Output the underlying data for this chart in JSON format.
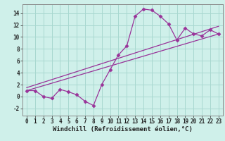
{
  "xlabel": "Windchill (Refroidissement éolien,°C)",
  "ylabel": "",
  "background_color": "#cff0ea",
  "grid_color": "#a8d8d0",
  "line_color": "#993399",
  "spine_color": "#888888",
  "xlim": [
    -0.5,
    23.5
  ],
  "ylim": [
    -3.2,
    15.5
  ],
  "xticks": [
    0,
    1,
    2,
    3,
    4,
    5,
    6,
    7,
    8,
    9,
    10,
    11,
    12,
    13,
    14,
    15,
    16,
    17,
    18,
    19,
    20,
    21,
    22,
    23
  ],
  "yticks": [
    -2,
    0,
    2,
    4,
    6,
    8,
    10,
    12,
    14
  ],
  "curve1_x": [
    0,
    1,
    2,
    3,
    4,
    5,
    6,
    7,
    8,
    9,
    10,
    11,
    12,
    13,
    14,
    15,
    16,
    17,
    18,
    19,
    20,
    21,
    22,
    23
  ],
  "curve1_y": [
    1.0,
    1.0,
    0.0,
    -0.3,
    1.2,
    0.8,
    0.3,
    -0.8,
    -1.5,
    2.0,
    4.5,
    7.0,
    8.5,
    13.5,
    14.7,
    14.5,
    13.5,
    12.2,
    9.5,
    11.5,
    10.5,
    10.2,
    11.2,
    10.5
  ],
  "line2_x": [
    0,
    23
  ],
  "line2_y": [
    1.0,
    10.5
  ],
  "line3_x": [
    0,
    23
  ],
  "line3_y": [
    1.5,
    11.8
  ],
  "marker": "D",
  "markersize": 2.5,
  "linewidth": 0.9,
  "tick_fontsize": 5.5,
  "xlabel_fontsize": 6.5
}
